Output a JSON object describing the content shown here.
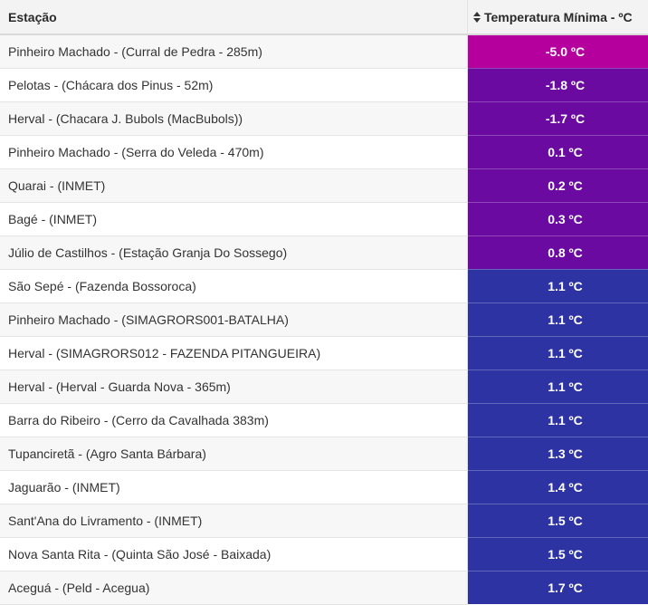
{
  "table": {
    "headers": {
      "station": "Estação",
      "temperature": "Temperatura Mínima - ºC",
      "sort_icon": "sort-icon"
    },
    "rows": [
      {
        "station": "Pinheiro Machado - (Curral de Pedra - 285m)",
        "temp": "-5.0 ºC",
        "color": "#b5009e"
      },
      {
        "station": "Pelotas - (Chácara dos Pinus - 52m)",
        "temp": "-1.8 ºC",
        "color": "#6a0aa0"
      },
      {
        "station": "Herval - (Chacara J. Bubols (MacBubols))",
        "temp": "-1.7 ºC",
        "color": "#6a0aa0"
      },
      {
        "station": "Pinheiro Machado - (Serra do Veleda - 470m)",
        "temp": "0.1 ºC",
        "color": "#6a0aa0"
      },
      {
        "station": "Quarai - (INMET)",
        "temp": "0.2 ºC",
        "color": "#6a0aa0"
      },
      {
        "station": "Bagé - (INMET)",
        "temp": "0.3 ºC",
        "color": "#6a0aa0"
      },
      {
        "station": "Júlio de Castilhos - (Estação Granja Do Sossego)",
        "temp": "0.8 ºC",
        "color": "#6a0aa0"
      },
      {
        "station": "São Sepé - (Fazenda Bossoroca)",
        "temp": "1.1 ºC",
        "color": "#2d33a3"
      },
      {
        "station": "Pinheiro Machado - (SIMAGRORS001-BATALHA)",
        "temp": "1.1 ºC",
        "color": "#2d33a3"
      },
      {
        "station": "Herval - (SIMAGRORS012 - FAZENDA PITANGUEIRA)",
        "temp": "1.1 ºC",
        "color": "#2d33a3"
      },
      {
        "station": "Herval - (Herval - Guarda Nova - 365m)",
        "temp": "1.1 ºC",
        "color": "#2d33a3"
      },
      {
        "station": "Barra do Ribeiro - (Cerro da Cavalhada 383m)",
        "temp": "1.1 ºC",
        "color": "#2d33a3"
      },
      {
        "station": "Tupanciretã - (Agro Santa Bárbara)",
        "temp": "1.3 ºC",
        "color": "#2d33a3"
      },
      {
        "station": "Jaguarão - (INMET)",
        "temp": "1.4 ºC",
        "color": "#2d33a3"
      },
      {
        "station": "Sant'Ana do Livramento - (INMET)",
        "temp": "1.5 ºC",
        "color": "#2d33a3"
      },
      {
        "station": "Nova Santa Rita - (Quinta São José - Baixada)",
        "temp": "1.5 ºC",
        "color": "#2d33a3"
      },
      {
        "station": "Aceguá - (Peld - Acegua)",
        "temp": "1.7 ºC",
        "color": "#2d33a3"
      }
    ]
  }
}
